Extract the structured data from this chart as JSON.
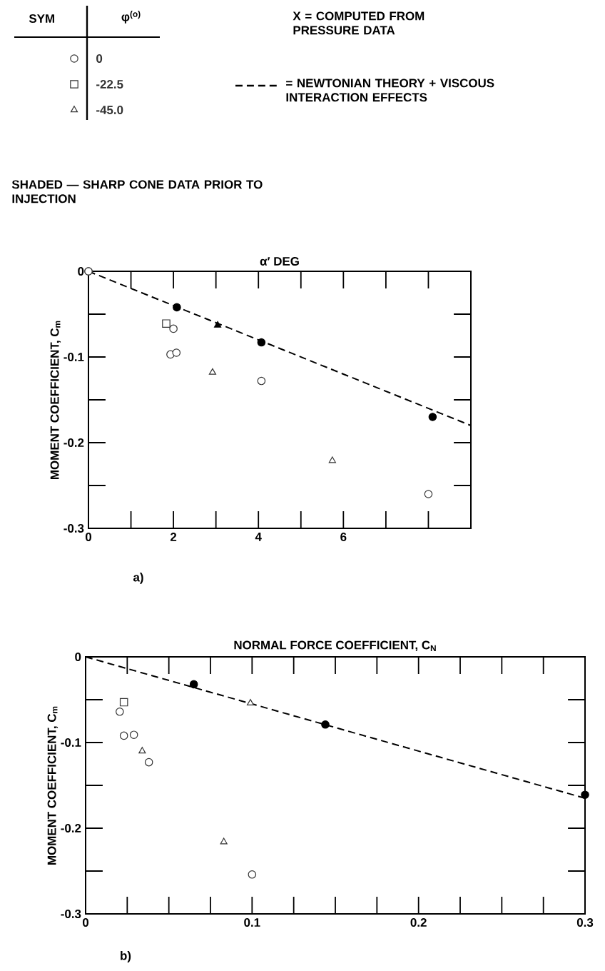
{
  "chart_data": [
    {
      "type": "scatter",
      "xlabel": "α′ DEG",
      "ylabel": "MOMENT COEFFICIENT, C$_{m}$",
      "legend": "top",
      "legend_title": "φ$^{(o)}$",
      "annotations": [
        "SYM",
        "X = COMPUTED FROM PRESSURE DATA",
        "SHADED — SHARP CONE DATA PRIOR TO INJECTION",
        "a)"
      ],
      "xlim": [
        0,
        9
      ],
      "ylim": [
        -0.3,
        0
      ],
      "xticks": [
        0,
        {
          "value": 1,
          "label": null
        },
        2,
        {
          "value": 3,
          "label": null
        },
        4,
        {
          "value": 5,
          "label": null
        },
        6,
        {
          "value": 7,
          "label": null
        },
        {
          "value": 8,
          "label": null
        }
      ],
      "yticks": [
        -0.3,
        {
          "value": -0.25,
          "label": null
        },
        -0.2,
        {
          "value": -0.15,
          "label": null
        },
        -0.1,
        {
          "value": -0.05,
          "label": null
        },
        0
      ],
      "series": [
        {
          "name": "0",
          "marker": "circle",
          "color": "#333333",
          "x": [
            0,
            0,
            2.0,
            1.93,
            2.07,
            4.07,
            8.0
          ],
          "values": [
            0,
            0,
            -0.067,
            -0.097,
            -0.095,
            -0.128,
            -0.26
          ]
        },
        {
          "name": "-22.5",
          "marker": "square",
          "color": "#333333",
          "x": [
            1.83
          ],
          "values": [
            -0.061
          ]
        },
        {
          "name": "-45.0",
          "marker": "triangle",
          "color": "#333333",
          "x": [
            2.92,
            5.74
          ],
          "values": [
            -0.118,
            -0.221
          ]
        },
        {
          "marker": "circle",
          "color": "#000000",
          "x": [
            2.08,
            4.07,
            8.1
          ],
          "values": [
            -0.042,
            -0.083,
            -0.17
          ]
        },
        {
          "marker": "triangle",
          "color": "#000000",
          "x": [
            3.04
          ],
          "values": [
            -0.063
          ]
        },
        {
          "name": "= NEWTONIAN THEORY + VISCOUS INTERACTION EFFECTS",
          "type": "line",
          "line_style": "dashed",
          "marker": "none",
          "color": "#000000",
          "x": [
            0,
            9
          ],
          "values": [
            0,
            -0.18
          ]
        }
      ]
    },
    {
      "type": "scatter",
      "xlabel": "NORMAL FORCE COEFFICIENT, C$_{N}$",
      "ylabel": "MOMENT COEFFICIENT, C$_{m}$",
      "annotations": [
        "b)"
      ],
      "xlim": [
        0,
        0.3
      ],
      "ylim": [
        -0.3,
        0
      ],
      "xticks": [
        0,
        {
          "value": 0.025,
          "label": null
        },
        {
          "value": 0.05,
          "label": null
        },
        {
          "value": 0.075,
          "label": null
        },
        0.1,
        {
          "value": 0.125,
          "label": null
        },
        {
          "value": 0.15,
          "label": null
        },
        {
          "value": 0.175,
          "label": null
        },
        0.2,
        {
          "value": 0.225,
          "label": null
        },
        {
          "value": 0.25,
          "label": null
        },
        {
          "value": 0.275,
          "label": null
        },
        0.3
      ],
      "yticks": [
        -0.3,
        {
          "value": -0.25,
          "label": null
        },
        -0.2,
        {
          "value": -0.15,
          "label": null
        },
        -0.1,
        {
          "value": -0.05,
          "label": null
        },
        0
      ],
      "series": [
        {
          "marker": "circle",
          "color": "#333333",
          "x": [
            0.0205,
            0.023,
            0.029,
            0.038,
            0.1
          ],
          "values": [
            -0.064,
            -0.092,
            -0.091,
            -0.123,
            -0.254
          ]
        },
        {
          "marker": "square",
          "color": "#333333",
          "x": [
            0.023
          ],
          "values": [
            -0.053
          ]
        },
        {
          "marker": "triangle",
          "color": "#333333",
          "x": [
            0.034,
            0.083,
            0.099
          ],
          "values": [
            -0.11,
            -0.216,
            -0.054
          ]
        },
        {
          "marker": "circle",
          "color": "#000000",
          "x": [
            0.065,
            0.144,
            0.3
          ],
          "values": [
            -0.032,
            -0.079,
            -0.161
          ]
        },
        {
          "type": "line",
          "line_style": "dashed",
          "marker": "none",
          "color": "#000000",
          "x": [
            0,
            0.3
          ],
          "values": [
            0,
            -0.165
          ]
        }
      ]
    }
  ]
}
